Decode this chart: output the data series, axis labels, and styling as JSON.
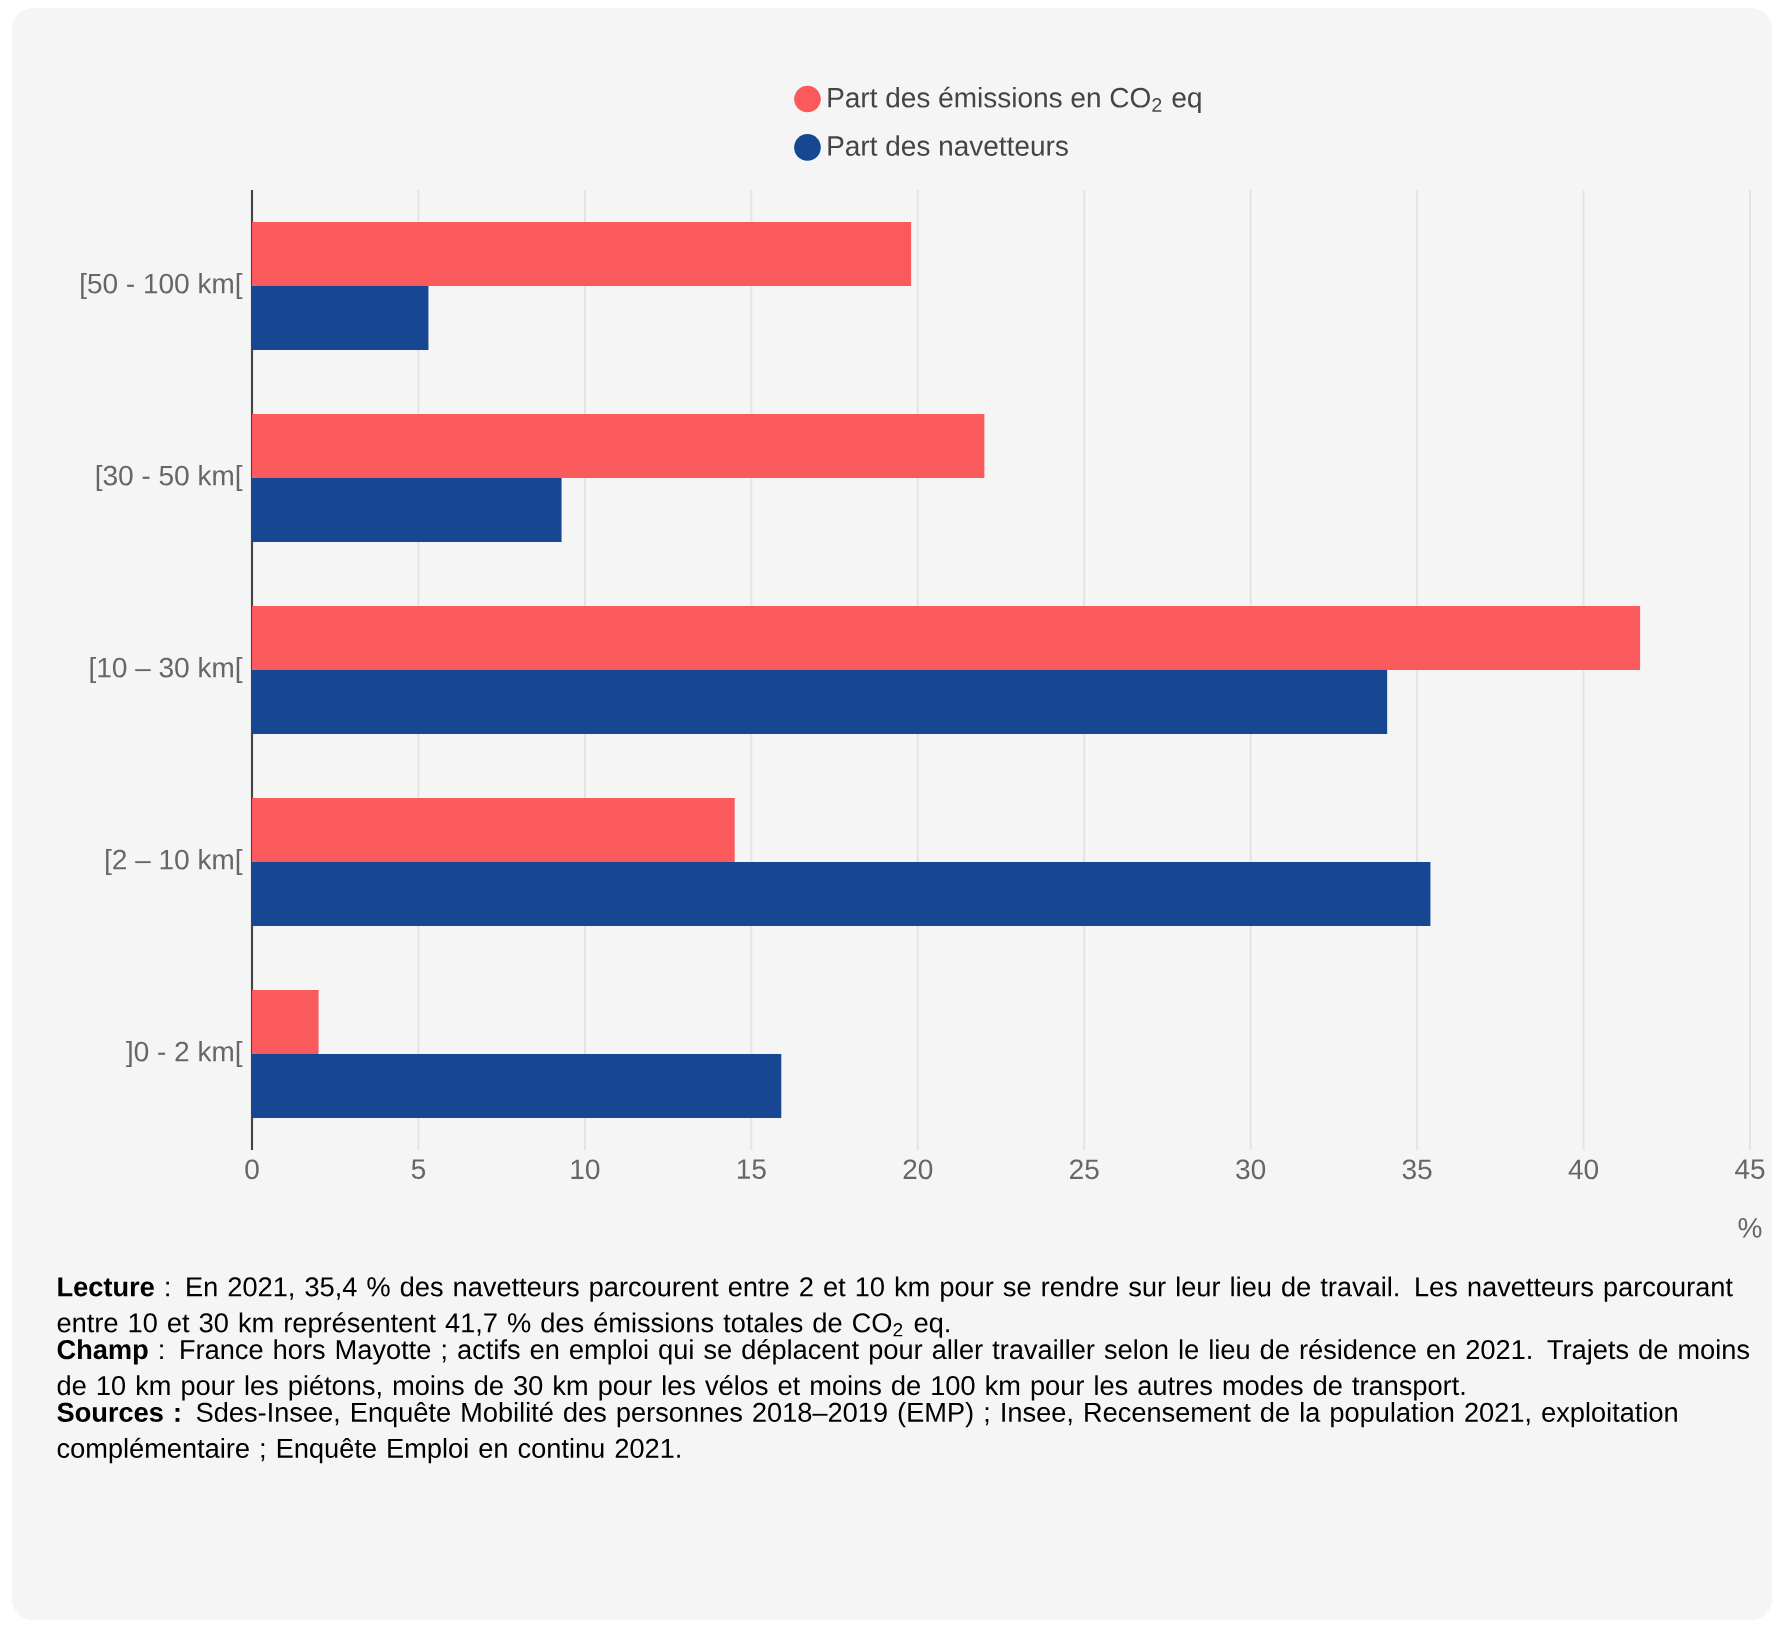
{
  "chart_data": {
    "type": "bar",
    "orientation": "horizontal",
    "categories": [
      "[50 - 100 km[",
      "[30 - 50 km[",
      "[10 – 30 km[",
      "[2 – 10 km[",
      "]0 - 2 km["
    ],
    "series": [
      {
        "name": "Part des émissions en CO$_{2}$ eq",
        "color": "#fa5a5c",
        "values": [
          19.8,
          22.0,
          41.7,
          14.5,
          2.0
        ]
      },
      {
        "name": "Part des navetteurs",
        "color": "#174692",
        "values": [
          5.3,
          9.3,
          34.1,
          35.4,
          15.9
        ]
      }
    ],
    "xlabel": "%",
    "xlim": [
      0,
      45
    ],
    "xticks": [
      0,
      5,
      10,
      15,
      20,
      25,
      30,
      35,
      40,
      45
    ],
    "grid": "x",
    "legend": "top",
    "annotations": [
      "**Lecture** : En 2021, 35,4 % des navetteurs parcourent entre 2 et 10 km pour se rendre sur leur lieu de travail. Les navetteurs parcourant entre 10 et 30 km représentent 41,7 % des émissions totales de CO$_{2}$ eq.",
      "**Champ** : France hors Mayotte ; actifs en emploi qui se déplacent pour aller travailler selon le lieu de résidence en 2021. Trajets de moins de 10 km pour les piétons, moins de 30 km pour les vélos et moins de 100 km pour les autres modes de transport.",
      "**Sources :** Sdes-Insee, Enquête Mobilité des personnes 2018–2019 (EMP) ; Insee, Recensement de la population 2021, exploitation complémentaire ; Enquête Emploi en continu 2021."
    ]
  }
}
